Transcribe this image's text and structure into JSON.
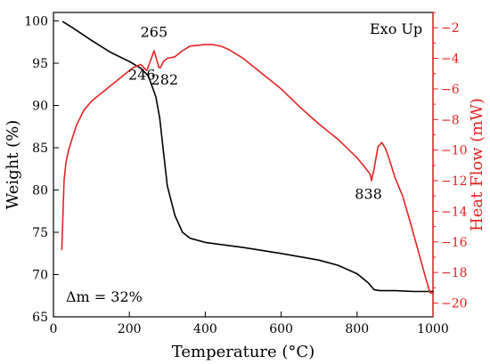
{
  "chart_data": {
    "type": "line",
    "title": "",
    "xlabel": "Temperature (°C)",
    "ylabel_left": "Weight (%)",
    "ylabel_right": "Heat Flow (mW)",
    "xlim": [
      0,
      1000
    ],
    "ylim_left": [
      65,
      101
    ],
    "ylim_right": [
      -20.9,
      -1.0
    ],
    "x_ticks": [
      0,
      200,
      400,
      600,
      800,
      1000
    ],
    "y_left_ticks": [
      65,
      70,
      75,
      80,
      85,
      90,
      95,
      100
    ],
    "y_right_ticks": [
      -20,
      -18,
      -16,
      -14,
      -12,
      -10,
      -8,
      -6,
      -4,
      -2
    ],
    "grid": false,
    "legend_text": "Exo Up",
    "legend_position": "top-right",
    "delta_label": "Δm = 32%",
    "colors": {
      "weight": "#000000",
      "heat": "#e32323",
      "axis": "#000000",
      "right_axis": "#e32323"
    },
    "series": [
      {
        "axis": "left",
        "x": [
          25,
          50,
          100,
          150,
          200,
          230,
          250,
          270,
          280,
          290,
          300,
          320,
          340,
          360,
          400,
          500,
          600,
          700,
          750,
          800,
          830,
          845,
          860,
          900,
          950,
          1000
        ],
        "values": [
          99.9,
          99.2,
          97.7,
          96.3,
          95.2,
          94.4,
          93.5,
          91.0,
          88.5,
          84.5,
          80.5,
          77.0,
          75.0,
          74.3,
          73.8,
          73.2,
          72.5,
          71.7,
          71.1,
          70.1,
          69.0,
          68.2,
          68.1,
          68.1,
          68.0,
          68.0
        ]
      },
      {
        "axis": "right",
        "x": [
          22,
          28,
          33,
          40,
          50,
          60,
          80,
          100,
          130,
          160,
          190,
          210,
          230,
          246,
          255,
          265,
          272,
          278,
          282,
          290,
          300,
          320,
          340,
          360,
          380,
          400,
          420,
          440,
          460,
          500,
          550,
          600,
          650,
          700,
          750,
          800,
          820,
          835,
          838,
          845,
          855,
          865,
          875,
          885,
          900,
          920,
          940,
          960,
          980,
          992,
          1000
        ],
        "values": [
          -16.5,
          -12.0,
          -10.8,
          -10.0,
          -9.2,
          -8.4,
          -7.4,
          -6.8,
          -6.2,
          -5.6,
          -5.0,
          -4.6,
          -4.4,
          -4.8,
          -4.2,
          -3.5,
          -4.1,
          -4.6,
          -4.6,
          -4.2,
          -4.0,
          -3.9,
          -3.5,
          -3.2,
          -3.15,
          -3.1,
          -3.1,
          -3.2,
          -3.4,
          -4.0,
          -5.0,
          -6.0,
          -7.2,
          -8.3,
          -9.3,
          -10.5,
          -11.1,
          -11.6,
          -12.0,
          -11.2,
          -9.8,
          -9.5,
          -9.9,
          -10.6,
          -11.8,
          -13.0,
          -14.7,
          -16.5,
          -18.3,
          -19.3,
          -19.4
        ]
      }
    ],
    "annotations": [
      {
        "text": "265",
        "x": 265,
        "y_right": -2.6
      },
      {
        "text": "246",
        "x": 233,
        "y_right": -5.4
      },
      {
        "text": "282",
        "x": 293,
        "y_right": -5.7
      },
      {
        "text": "838",
        "x": 830,
        "y_right": -13.2
      }
    ]
  }
}
